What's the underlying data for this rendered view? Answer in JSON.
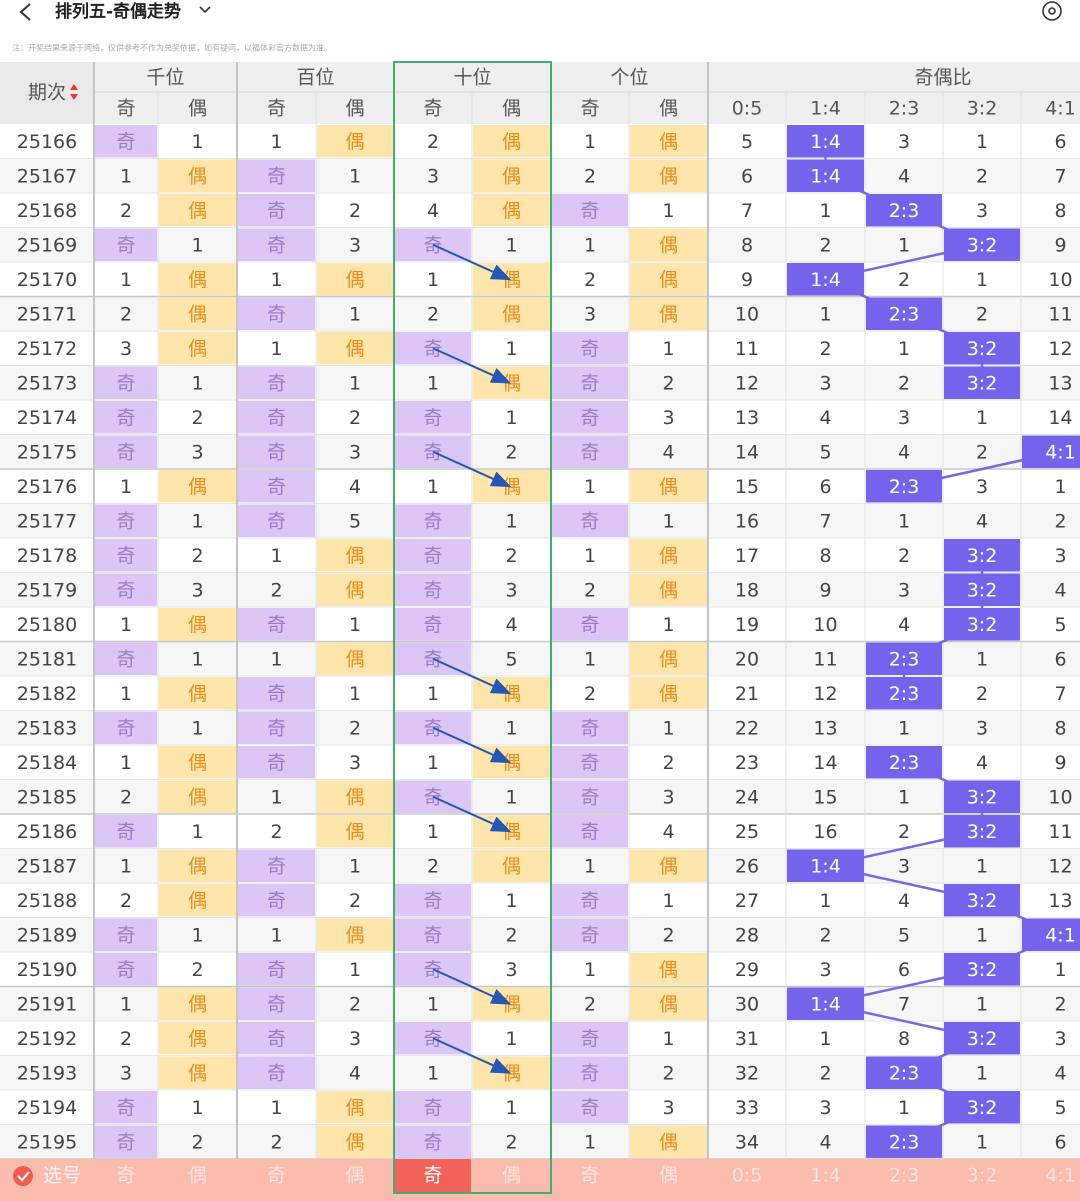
{
  "header": {
    "title": "排列五-奇偶走势",
    "notice": "注：开奖结果来源于网络，仅供参考不作为兑奖依据，如有疑问，以福体彩官方数据为准。"
  },
  "table": {
    "period_header": "期次",
    "groups": [
      "千位",
      "百位",
      "十位",
      "个位",
      "奇偶比"
    ],
    "subheaders": [
      "奇",
      "偶",
      "奇",
      "偶",
      "奇",
      "偶",
      "奇",
      "偶",
      "0:5",
      "1:4",
      "2:3",
      "3:2",
      "4:1"
    ],
    "rows": [
      [
        "25166",
        "奇",
        "1",
        "1",
        "偶",
        "2",
        "偶",
        "1",
        "偶",
        "5",
        "1:4",
        "3",
        "1",
        "6"
      ],
      [
        "25167",
        "1",
        "偶",
        "奇",
        "1",
        "3",
        "偶",
        "2",
        "偶",
        "6",
        "1:4",
        "4",
        "2",
        "7"
      ],
      [
        "25168",
        "2",
        "偶",
        "奇",
        "2",
        "4",
        "偶",
        "奇",
        "1",
        "7",
        "1",
        "2:3",
        "3",
        "8"
      ],
      [
        "25169",
        "奇",
        "1",
        "奇",
        "3",
        "奇",
        "1",
        "1",
        "偶",
        "8",
        "2",
        "1",
        "3:2",
        "9"
      ],
      [
        "25170",
        "1",
        "偶",
        "1",
        "偶",
        "1",
        "偶",
        "2",
        "偶",
        "9",
        "1:4",
        "2",
        "1",
        "10"
      ],
      [
        "25171",
        "2",
        "偶",
        "奇",
        "1",
        "2",
        "偶",
        "3",
        "偶",
        "10",
        "1",
        "2:3",
        "2",
        "11"
      ],
      [
        "25172",
        "3",
        "偶",
        "1",
        "偶",
        "奇",
        "1",
        "奇",
        "1",
        "11",
        "2",
        "1",
        "3:2",
        "12"
      ],
      [
        "25173",
        "奇",
        "1",
        "奇",
        "1",
        "1",
        "偶",
        "奇",
        "2",
        "12",
        "3",
        "2",
        "3:2",
        "13"
      ],
      [
        "25174",
        "奇",
        "2",
        "奇",
        "2",
        "奇",
        "1",
        "奇",
        "3",
        "13",
        "4",
        "3",
        "1",
        "14"
      ],
      [
        "25175",
        "奇",
        "3",
        "奇",
        "3",
        "奇",
        "2",
        "奇",
        "4",
        "14",
        "5",
        "4",
        "2",
        "4:1"
      ],
      [
        "25176",
        "1",
        "偶",
        "奇",
        "4",
        "1",
        "偶",
        "1",
        "偶",
        "15",
        "6",
        "2:3",
        "3",
        "1"
      ],
      [
        "25177",
        "奇",
        "1",
        "奇",
        "5",
        "奇",
        "1",
        "奇",
        "1",
        "16",
        "7",
        "1",
        "4",
        "2"
      ],
      [
        "25178",
        "奇",
        "2",
        "1",
        "偶",
        "奇",
        "2",
        "1",
        "偶",
        "17",
        "8",
        "2",
        "3:2",
        "3"
      ],
      [
        "25179",
        "奇",
        "3",
        "2",
        "偶",
        "奇",
        "3",
        "2",
        "偶",
        "18",
        "9",
        "3",
        "3:2",
        "4"
      ],
      [
        "25180",
        "1",
        "偶",
        "奇",
        "1",
        "奇",
        "4",
        "奇",
        "1",
        "19",
        "10",
        "4",
        "3:2",
        "5"
      ],
      [
        "25181",
        "奇",
        "1",
        "1",
        "偶",
        "奇",
        "5",
        "1",
        "偶",
        "20",
        "11",
        "2:3",
        "1",
        "6"
      ],
      [
        "25182",
        "1",
        "偶",
        "奇",
        "1",
        "1",
        "偶",
        "2",
        "偶",
        "21",
        "12",
        "2:3",
        "2",
        "7"
      ],
      [
        "25183",
        "奇",
        "1",
        "奇",
        "2",
        "奇",
        "1",
        "奇",
        "1",
        "22",
        "13",
        "1",
        "3",
        "8"
      ],
      [
        "25184",
        "1",
        "偶",
        "奇",
        "3",
        "1",
        "偶",
        "奇",
        "2",
        "23",
        "14",
        "2:3",
        "4",
        "9"
      ],
      [
        "25185",
        "2",
        "偶",
        "1",
        "偶",
        "奇",
        "1",
        "奇",
        "3",
        "24",
        "15",
        "1",
        "3:2",
        "10"
      ],
      [
        "25186",
        "奇",
        "1",
        "2",
        "偶",
        "1",
        "偶",
        "奇",
        "4",
        "25",
        "16",
        "2",
        "3:2",
        "11"
      ],
      [
        "25187",
        "1",
        "偶",
        "奇",
        "1",
        "2",
        "偶",
        "1",
        "偶",
        "26",
        "1:4",
        "3",
        "1",
        "12"
      ],
      [
        "25188",
        "2",
        "偶",
        "奇",
        "2",
        "奇",
        "1",
        "奇",
        "1",
        "27",
        "1",
        "4",
        "3:2",
        "13"
      ],
      [
        "25189",
        "奇",
        "1",
        "1",
        "偶",
        "奇",
        "2",
        "奇",
        "2",
        "28",
        "2",
        "5",
        "1",
        "4:1"
      ],
      [
        "25190",
        "奇",
        "2",
        "奇",
        "1",
        "奇",
        "3",
        "1",
        "偶",
        "29",
        "3",
        "6",
        "3:2",
        "1"
      ],
      [
        "25191",
        "1",
        "偶",
        "奇",
        "2",
        "1",
        "偶",
        "2",
        "偶",
        "30",
        "1:4",
        "7",
        "1",
        "2"
      ],
      [
        "25192",
        "2",
        "偶",
        "奇",
        "3",
        "奇",
        "1",
        "奇",
        "1",
        "31",
        "1",
        "8",
        "3:2",
        "3"
      ],
      [
        "25193",
        "3",
        "偶",
        "奇",
        "4",
        "1",
        "偶",
        "奇",
        "2",
        "32",
        "2",
        "2:3",
        "1",
        "4"
      ],
      [
        "25194",
        "奇",
        "1",
        "1",
        "偶",
        "奇",
        "1",
        "奇",
        "3",
        "33",
        "3",
        "1",
        "3:2",
        "5"
      ],
      [
        "25195",
        "奇",
        "2",
        "2",
        "偶",
        "奇",
        "2",
        "1",
        "偶",
        "34",
        "4",
        "2:3",
        "1",
        "6"
      ]
    ],
    "footer": {
      "label": "选号",
      "cells": [
        "奇",
        "偶",
        "奇",
        "偶",
        "奇",
        "偶",
        "奇",
        "偶",
        "0:5",
        "1:4",
        "2:3",
        "3:2",
        "4:1"
      ]
    }
  }
}
